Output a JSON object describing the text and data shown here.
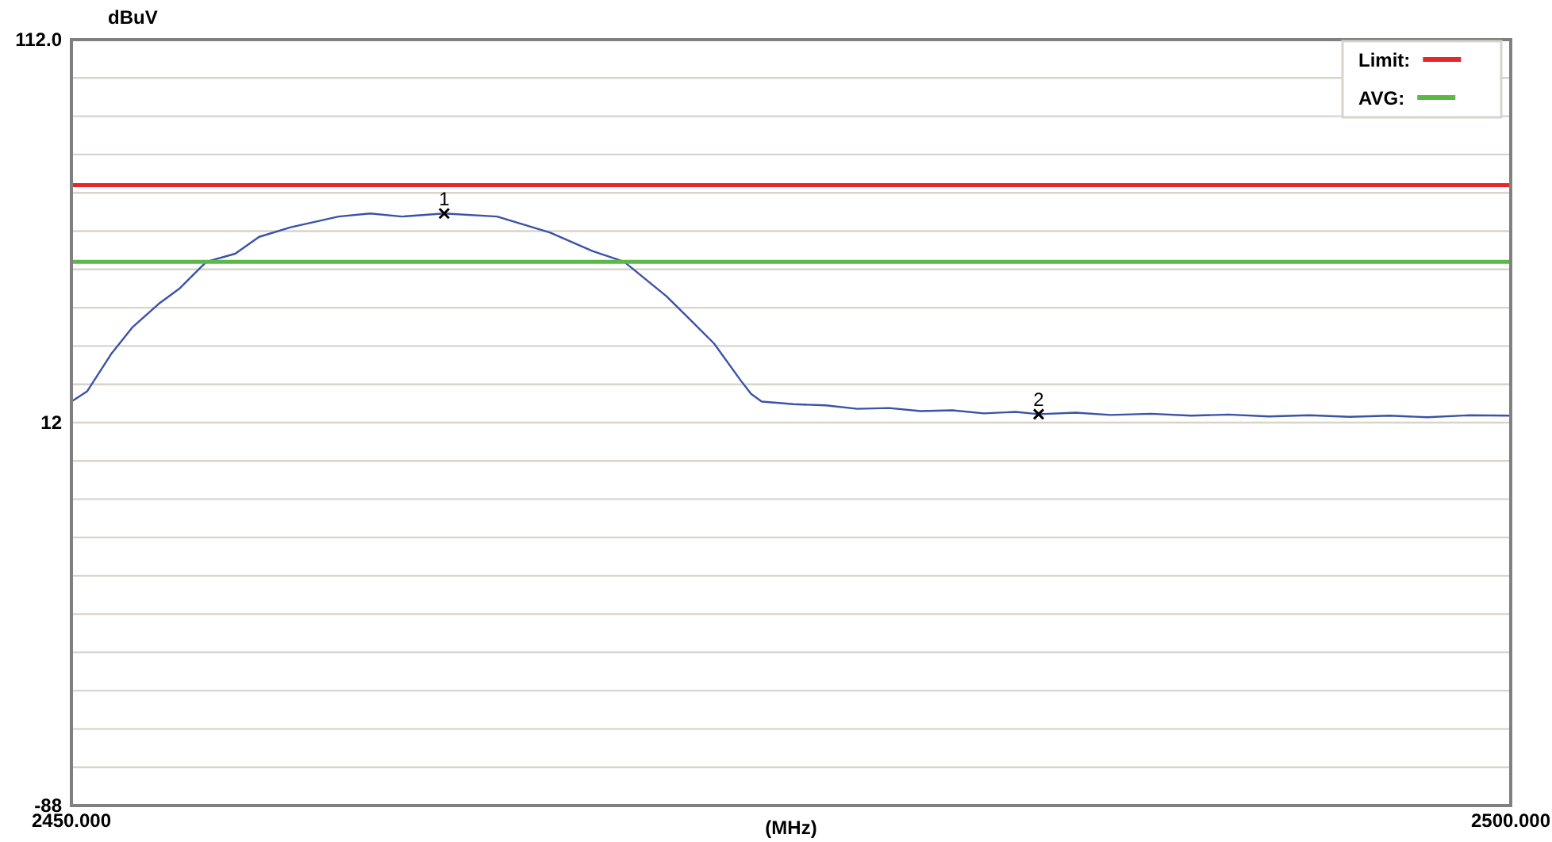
{
  "chart_data": {
    "type": "line",
    "xlabel": "(MHz)",
    "ylabel": "dBuV",
    "xlim": [
      2450,
      2500
    ],
    "xticks": [
      {
        "value": 2450,
        "label": "2450.000"
      },
      {
        "value": 2500,
        "label": "2500.000"
      }
    ],
    "ylim": [
      -88,
      112
    ],
    "yticks": [
      {
        "value": 112,
        "label": "112.0"
      },
      {
        "value": 102,
        "label": null
      },
      {
        "value": 92,
        "label": null
      },
      {
        "value": 82,
        "label": null
      },
      {
        "value": 72,
        "label": null
      },
      {
        "value": 62,
        "label": null
      },
      {
        "value": 52,
        "label": null
      },
      {
        "value": 42,
        "label": null
      },
      {
        "value": 32,
        "label": null
      },
      {
        "value": 22,
        "label": null
      },
      12,
      {
        "value": 2,
        "label": null
      },
      {
        "value": -8,
        "label": null
      },
      {
        "value": -18,
        "label": null
      },
      {
        "value": -28,
        "label": null
      },
      {
        "value": -38,
        "label": null
      },
      {
        "value": -48,
        "label": null
      },
      {
        "value": -58,
        "label": null
      },
      {
        "value": -68,
        "label": null
      },
      {
        "value": -78,
        "label": null
      },
      -88
    ],
    "grid": "y",
    "legend": "top right",
    "marker": "none",
    "line_style": "solid",
    "series": [
      {
        "color": "#3a52a8",
        "x": [
          2450.0,
          2450.55,
          2451.38,
          2452.11,
          2453.03,
          2453.77,
          2454.69,
          2455.69,
          2456.52,
          2457.62,
          2459.28,
          2460.38,
          2461.48,
          2462.95,
          2464.79,
          2466.63,
          2468.1,
          2469.2,
          2470.67,
          2471.41,
          2472.33,
          2473.25,
          2473.61,
          2473.98,
          2475.08,
          2476.2,
          2477.3,
          2478.4,
          2479.5,
          2480.6,
          2481.7,
          2482.8,
          2483.6,
          2484.9,
          2486.1,
          2487.5,
          2488.9,
          2490.2,
          2491.6,
          2493.0,
          2494.4,
          2495.8,
          2497.1,
          2498.5,
          2500.0
        ],
        "values": [
          17.5,
          20.2,
          29.9,
          36.8,
          43.0,
          47.1,
          54.0,
          56.1,
          60.5,
          63.0,
          65.8,
          66.6,
          65.8,
          66.6,
          65.8,
          61.6,
          56.8,
          54.0,
          45.0,
          39.5,
          32.6,
          23.0,
          19.5,
          17.5,
          16.8,
          16.5,
          15.6,
          15.8,
          15.0,
          15.2,
          14.4,
          14.8,
          14.2,
          14.6,
          14.0,
          14.3,
          13.8,
          14.1,
          13.6,
          13.9,
          13.5,
          13.8,
          13.4,
          13.9,
          13.8
        ]
      },
      {
        "name": "Limit:",
        "color": "#e8262a",
        "x": [
          2450,
          2500
        ],
        "values": [
          74,
          74
        ]
      },
      {
        "name": "AVG:",
        "color": "#5cb848",
        "x": [
          2450,
          2500
        ],
        "values": [
          54,
          54
        ]
      }
    ],
    "annotations": [
      {
        "text": "1",
        "x": 2462.95,
        "y": 66.6
      },
      {
        "text": "2",
        "x": 2483.6,
        "y": 14.2
      }
    ]
  }
}
